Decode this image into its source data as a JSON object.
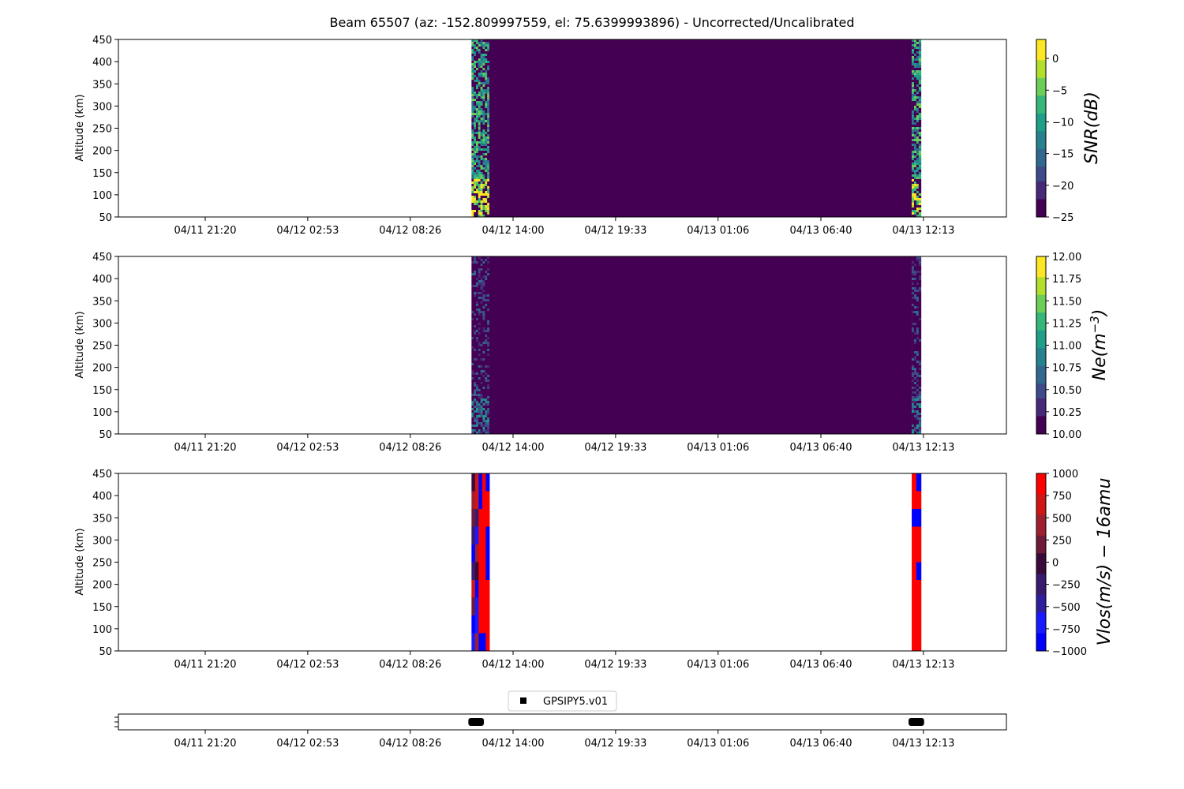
{
  "title": "Beam 65507 (az: -152.809997559, el: 75.6399993896) - Uncorrected/Uncalibrated",
  "chart_data": [
    {
      "type": "heatmap",
      "panel": "snr",
      "ylabel": "Altitude (km)",
      "ylim": [
        50,
        450
      ],
      "yticks": [
        50,
        100,
        150,
        200,
        250,
        300,
        350,
        400,
        450
      ],
      "xticks": [
        "04/11 21:20",
        "04/12 02:53",
        "04/12 08:26",
        "04/12 14:00",
        "04/12 19:33",
        "04/13 01:06",
        "04/13 06:40",
        "04/13 12:13"
      ],
      "colorbar_label": "SNR(dB)",
      "colormap": "viridis",
      "clim": [
        -25,
        3
      ],
      "colorbar_ticks": [
        0,
        -5,
        -10,
        -15,
        -20,
        -25
      ],
      "blocks": [
        {
          "start": "04/12 11:45",
          "end": "04/12 12:43",
          "pattern": "noisy-high"
        },
        {
          "start": "04/12 12:43",
          "end": "04/13 11:35",
          "pattern": "uniform-low"
        },
        {
          "start": "04/13 11:35",
          "end": "04/13 12:05",
          "pattern": "noisy-high"
        }
      ]
    },
    {
      "type": "heatmap",
      "panel": "ne",
      "ylabel": "Altitude (km)",
      "ylim": [
        50,
        450
      ],
      "yticks": [
        50,
        100,
        150,
        200,
        250,
        300,
        350,
        400,
        450
      ],
      "xticks": [
        "04/11 21:20",
        "04/12 02:53",
        "04/12 08:26",
        "04/12 14:00",
        "04/12 19:33",
        "04/13 01:06",
        "04/13 06:40",
        "04/13 12:13"
      ],
      "colorbar_label": "Ne(m^-3)",
      "colormap": "viridis",
      "clim": [
        10.0,
        12.0
      ],
      "colorbar_ticks": [
        "12.00",
        "11.75",
        "11.50",
        "11.25",
        "11.00",
        "10.75",
        "10.50",
        "10.25",
        "10.00"
      ],
      "blocks": [
        {
          "start": "04/12 11:45",
          "end": "04/12 12:43",
          "pattern": "noisy-mid"
        },
        {
          "start": "04/12 12:43",
          "end": "04/13 11:35",
          "pattern": "uniform-low"
        },
        {
          "start": "04/13 11:35",
          "end": "04/13 12:05",
          "pattern": "noisy-mid"
        }
      ]
    },
    {
      "type": "heatmap",
      "panel": "vlos",
      "ylabel": "Altitude (km)",
      "ylim": [
        50,
        450
      ],
      "yticks": [
        50,
        100,
        150,
        200,
        250,
        300,
        350,
        400,
        450
      ],
      "xticks": [
        "04/11 21:20",
        "04/12 02:53",
        "04/12 08:26",
        "04/12 14:00",
        "04/12 19:33",
        "04/13 01:06",
        "04/13 06:40",
        "04/13 12:13"
      ],
      "colorbar_label": "Vlos(m/s) − 16amu",
      "colormap": "bwr-dark",
      "clim": [
        -1000,
        1000
      ],
      "colorbar_ticks": [
        1000,
        750,
        500,
        250,
        0,
        -250,
        -500,
        -750,
        -1000
      ],
      "blocks": [
        {
          "start": "04/12 11:45",
          "end": "04/12 12:43",
          "pattern": "red-blue"
        },
        {
          "start": "04/13 11:35",
          "end": "04/13 12:05",
          "pattern": "red-blue"
        }
      ]
    },
    {
      "type": "scatter",
      "panel": "timeline",
      "xticks": [
        "04/11 21:20",
        "04/12 02:53",
        "04/12 08:26",
        "04/12 14:00",
        "04/12 19:33",
        "04/13 01:06",
        "04/13 06:40",
        "04/13 12:13"
      ],
      "series": [
        {
          "name": "GPSIPY5.v01",
          "x": [
            [
              "04/12 11:45",
              "04/12 12:15"
            ],
            [
              "04/13 11:35",
              "04/13 12:05"
            ]
          ]
        }
      ],
      "legend": "top-center"
    }
  ]
}
